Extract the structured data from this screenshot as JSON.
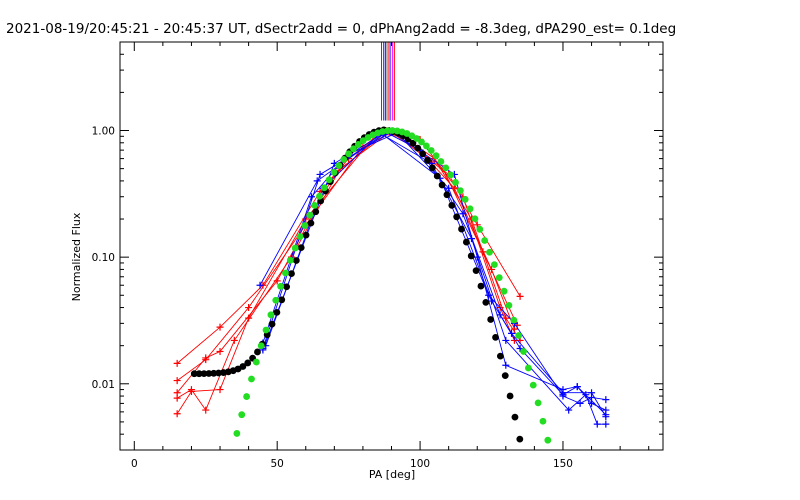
{
  "chart_data": {
    "type": "line",
    "title": "2021-08-19/20:45:21 - 20:45:37 UT, dSectr2add = 0, dPhAng2add = -8.3deg, dPA290_est=  0.1deg",
    "xlabel": "PA [deg]",
    "ylabel": "Normalized Flux",
    "xlim": [
      -5,
      185
    ],
    "ylim": [
      0.003,
      5.0
    ],
    "yscale": "log",
    "x_ticks": [
      0,
      50,
      100,
      150
    ],
    "x_tick_labels": [
      "0",
      "50",
      "100",
      "150"
    ],
    "y_ticks": [
      0.01,
      0.1,
      1.0
    ],
    "y_tick_labels": [
      "0.01",
      "0.10",
      "1.00"
    ],
    "grid": false,
    "legend": "none",
    "vertical_markers": {
      "x": [
        86.5,
        87.3,
        88.0,
        88.8,
        89.5,
        90.3,
        91.0
      ],
      "y_range": [
        1.2,
        5.0
      ],
      "colors": [
        "#ff0000",
        "#0000ff",
        "#000000",
        "#ff0000",
        "#0000ff",
        "#ff00ff",
        "#ff0000"
      ]
    },
    "series": [
      {
        "color": "#ff0000",
        "style": "line+plus",
        "x": [
          15,
          30,
          45,
          65,
          75,
          87,
          90,
          110,
          120,
          135
        ],
        "y": [
          0.0145,
          0.028,
          0.06,
          0.33,
          0.6,
          0.98,
          0.97,
          0.45,
          0.18,
          0.049
        ]
      },
      {
        "color": "#ff0000",
        "style": "line+plus",
        "x": [
          15,
          25,
          40,
          60,
          80,
          88,
          92,
          105,
          118,
          130,
          135
        ],
        "y": [
          0.0106,
          0.0155,
          0.04,
          0.18,
          0.75,
          1.0,
          0.98,
          0.6,
          0.2,
          0.033,
          0.022
        ]
      },
      {
        "color": "#ff0000",
        "style": "line+plus",
        "x": [
          15,
          25,
          30,
          50,
          70,
          88,
          95,
          112,
          125,
          133
        ],
        "y": [
          0.0085,
          0.016,
          0.018,
          0.065,
          0.45,
          0.97,
          0.92,
          0.35,
          0.08,
          0.027
        ]
      },
      {
        "color": "#ff0000",
        "style": "line+plus",
        "x": [
          15,
          20,
          25,
          35,
          55,
          72,
          90,
          108,
          122,
          134
        ],
        "y": [
          0.0077,
          0.009,
          0.0062,
          0.022,
          0.1,
          0.5,
          0.99,
          0.5,
          0.11,
          0.029
        ]
      },
      {
        "color": "#ff0000",
        "style": "line+plus",
        "x": [
          15,
          20,
          30,
          40,
          60,
          85,
          100,
          115,
          128,
          133
        ],
        "y": [
          0.0058,
          0.0087,
          0.009,
          0.033,
          0.2,
          0.95,
          0.85,
          0.3,
          0.04,
          0.022
        ]
      },
      {
        "color": "#0000ff",
        "style": "line+plus",
        "x": [
          45,
          65,
          90,
          112,
          120,
          130,
          150,
          155,
          160,
          165
        ],
        "y": [
          0.019,
          0.45,
          0.98,
          0.45,
          0.1,
          0.014,
          0.009,
          0.0095,
          0.007,
          0.0062
        ]
      },
      {
        "color": "#0000ff",
        "style": "line+plus",
        "x": [
          45,
          62,
          75,
          92,
          110,
          125,
          132,
          150,
          160,
          165
        ],
        "y": [
          0.021,
          0.3,
          0.65,
          0.96,
          0.35,
          0.045,
          0.025,
          0.0085,
          0.0085,
          0.0055
        ]
      },
      {
        "color": "#0000ff",
        "style": "line+plus",
        "x": [
          45,
          70,
          88,
          100,
          115,
          128,
          135,
          150,
          155,
          165
        ],
        "y": [
          0.0185,
          0.55,
          0.97,
          0.7,
          0.22,
          0.035,
          0.019,
          0.0082,
          0.0095,
          0.0057
        ]
      },
      {
        "color": "#0000ff",
        "style": "line+plus",
        "x": [
          46,
          66,
          86,
          104,
          118,
          130,
          152,
          158,
          162,
          165
        ],
        "y": [
          0.02,
          0.35,
          0.95,
          0.55,
          0.14,
          0.022,
          0.0062,
          0.0082,
          0.0048,
          0.0048
        ]
      },
      {
        "color": "#0000ff",
        "style": "line+plus",
        "x": [
          44,
          64,
          87,
          107,
          124,
          133,
          150,
          156,
          160,
          165
        ],
        "y": [
          0.06,
          0.4,
          0.93,
          0.42,
          0.05,
          0.03,
          0.008,
          0.007,
          0.0078,
          0.0075
        ]
      },
      {
        "color": "#000000",
        "style": "dots",
        "model": {
          "center": 88,
          "sigma": 14,
          "scale": 1.0,
          "floor": 0.012,
          "x_start": 21,
          "x_end": 143,
          "step": 1.7
        }
      },
      {
        "color": "#22dd22",
        "style": "dots",
        "model": {
          "center": 90,
          "sigma": 16.3,
          "scale": 1.0,
          "floor": 0.0,
          "x_start": 24,
          "x_end": 145,
          "step": 1.7
        }
      }
    ]
  }
}
